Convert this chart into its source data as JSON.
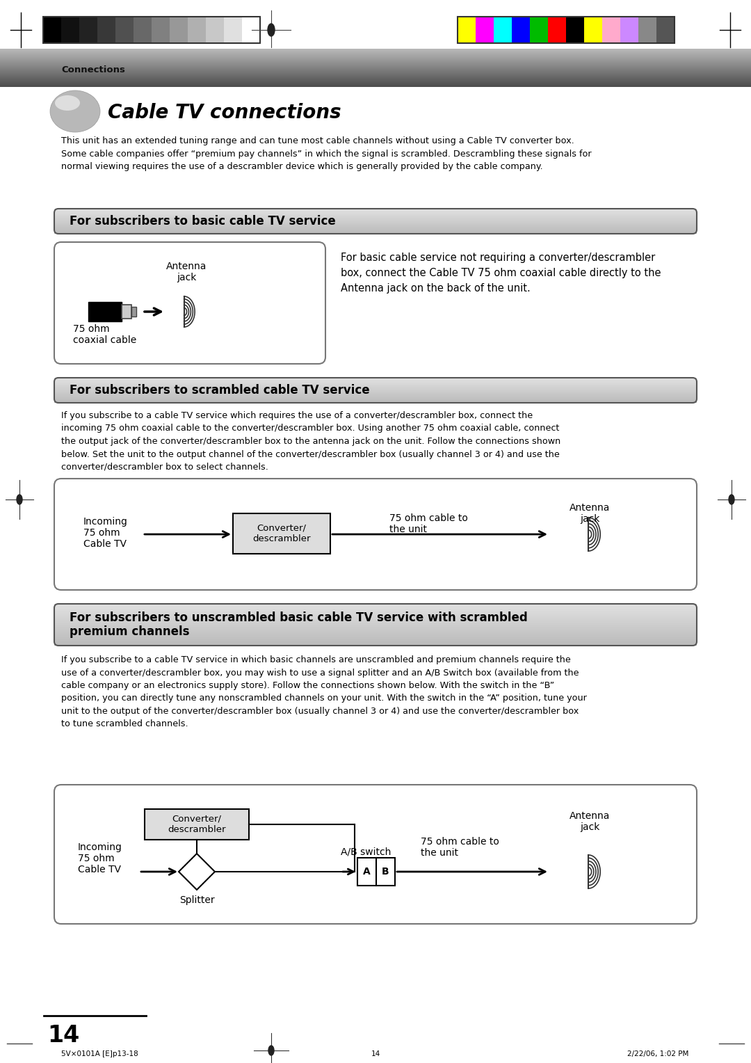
{
  "page_bg": "#ffffff",
  "header_bar_colors_left": [
    "#000000",
    "#111111",
    "#222222",
    "#383838",
    "#505050",
    "#686868",
    "#808080",
    "#989898",
    "#b0b0b0",
    "#c8c8c8",
    "#e0e0e0",
    "#ffffff"
  ],
  "header_bar_colors_right": [
    "#ffff00",
    "#ff00ff",
    "#00ffff",
    "#0000ff",
    "#00bb00",
    "#ff0000",
    "#000000",
    "#ffff00",
    "#ffaacc",
    "#cc88ff",
    "#888888",
    "#555555"
  ],
  "title": "Cable TV connections",
  "connections_label": "Connections",
  "intro_text": "This unit has an extended tuning range and can tune most cable channels without using a Cable TV converter box.\nSome cable companies offer “premium pay channels” in which the signal is scrambled. Descrambling these signals for\nnormal viewing requires the use of a descrambler device which is generally provided by the cable company.",
  "section1_title": "For subscribers to basic cable TV service",
  "section1_desc": "For basic cable service not requiring a converter/descrambler\nbox, connect the Cable TV 75 ohm coaxial cable directly to the\nAntenna jack on the back of the unit.",
  "section1_label1": "Antenna\njack",
  "section1_label2": "75 ohm\ncoaxial cable",
  "section2_title": "For subscribers to scrambled cable TV service",
  "section2_text": "If you subscribe to a cable TV service which requires the use of a converter/descrambler box, connect the\nincoming 75 ohm coaxial cable to the converter/descrambler box. Using another 75 ohm coaxial cable, connect\nthe output jack of the converter/descrambler box to the antenna jack on the unit. Follow the connections shown\nbelow. Set the unit to the output channel of the converter/descrambler box (usually channel 3 or 4) and use the\nconverter/descrambler box to select channels.",
  "section2_label_incoming": "Incoming\n75 ohm\nCable TV",
  "section2_label_converter": "Converter/\ndescrambler",
  "section2_label_75ohm": "75 ohm cable to\nthe unit",
  "section2_label_antenna": "Antenna\njack",
  "section3_title": "For subscribers to unscrambled basic cable TV service with scrambled\npremium channels",
  "section3_text": "If you subscribe to a cable TV service in which basic channels are unscrambled and premium channels require the\nuse of a converter/descrambler box, you may wish to use a signal splitter and an A/B Switch box (available from the\ncable company or an electronics supply store). Follow the connections shown below. With the switch in the “B”\nposition, you can directly tune any nonscrambled channels on your unit. With the switch in the “A” position, tune your\nunit to the output of the converter/descrambler box (usually channel 3 or 4) and use the converter/descrambler box\nto tune scrambled channels.",
  "section3_label_incoming": "Incoming\n75 ohm\nCable TV",
  "section3_label_splitter": "Splitter",
  "section3_label_converter": "Converter/\ndescrambler",
  "section3_label_ab": "A/B switch",
  "section3_label_75ohm": "75 ohm cable to\nthe unit",
  "section3_label_antenna": "Antenna\njack",
  "page_number": "14",
  "footer_left": "5V×0101A [E]p13-18",
  "footer_center": "14",
  "footer_right": "2/22/06, 1:02 PM"
}
